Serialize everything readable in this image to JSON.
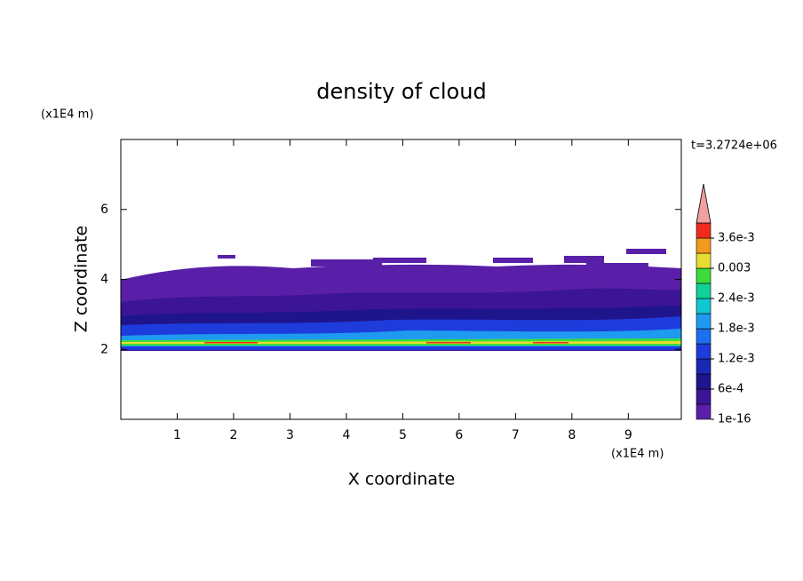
{
  "chart_data": {
    "type": "contour",
    "title": "density of cloud",
    "x_label": "X coordinate",
    "y_label": "Z coordinate",
    "x_unit": "(x1E4 m)",
    "y_unit": "(x1E4 m)",
    "annotation": "t=3.2724e+06",
    "xlim": [
      0,
      9.94
    ],
    "xticks": [
      1,
      2,
      3,
      4,
      5,
      6,
      7,
      8,
      9
    ],
    "ylim": [
      0,
      8
    ],
    "yticks": [
      2,
      4,
      6
    ],
    "colorbar": {
      "clim": [
        0,
        0.0039
      ],
      "ticks": [
        {
          "value": 1e-16,
          "label": "1e-16"
        },
        {
          "value": 0.0006,
          "label": "6e-4"
        },
        {
          "value": 0.0012,
          "label": "1.2e-3"
        },
        {
          "value": 0.0018,
          "label": "1.8e-3"
        },
        {
          "value": 0.0024,
          "label": "2.4e-3"
        },
        0.003,
        {
          "value": 0.0036,
          "label": "3.6e-3"
        }
      ],
      "colors": [
        "#5a1fa8",
        "#3c1496",
        "#1e148c",
        "#1a28b4",
        "#1e3cdc",
        "#1e6ef0",
        "#1e9bf0",
        "#10c8d2",
        "#10d296",
        "#3cdc3c",
        "#e6dc32",
        "#f09a1e",
        "#f02a1e"
      ],
      "overflow_color": "#f0a0a0"
    }
  }
}
